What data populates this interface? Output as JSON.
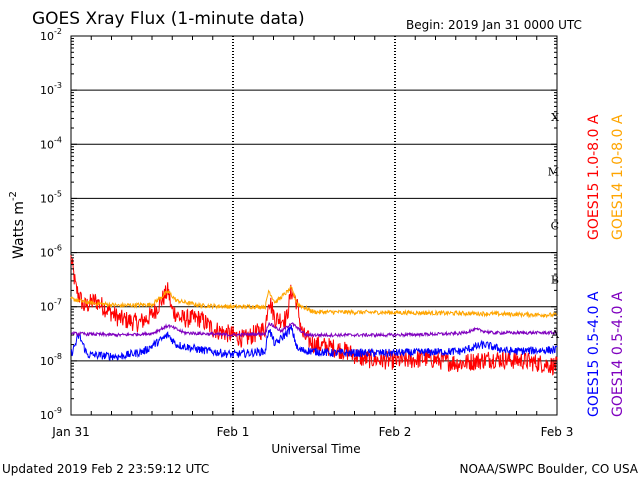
{
  "title": "GOES Xray Flux (1-minute data)",
  "begin": "Begin:  2019 Jan 31 0000 UTC",
  "updated": "Updated 2019 Feb  2 23:59:12 UTC",
  "credit": "NOAA/SWPC Boulder, CO USA",
  "chart_data": {
    "type": "line",
    "yscale": "log",
    "ylabel": "Watts m",
    "ylabel_exponent": "-2",
    "xlabel": "Universal Time",
    "xlim_days": [
      0,
      3
    ],
    "ylim": [
      1e-09,
      0.01
    ],
    "x_tick_labels": [
      "Jan 31",
      "Feb 1",
      "Feb 2",
      "Feb 3"
    ],
    "y_ticks": [
      {
        "base": "10",
        "exp": "-2"
      },
      {
        "base": "10",
        "exp": "-3"
      },
      {
        "base": "10",
        "exp": "-4"
      },
      {
        "base": "10",
        "exp": "-5"
      },
      {
        "base": "10",
        "exp": "-6"
      },
      {
        "base": "10",
        "exp": "-7"
      },
      {
        "base": "10",
        "exp": "-8"
      },
      {
        "base": "10",
        "exp": "-9"
      }
    ],
    "flare_classes": [
      {
        "label": "X",
        "value": 0.0001
      },
      {
        "label": "M",
        "value": 1e-05
      },
      {
        "label": "C",
        "value": 1e-06
      },
      {
        "label": "B",
        "value": 1e-07
      },
      {
        "label": "A",
        "value": 1e-08
      }
    ],
    "series": [
      {
        "name": "GOES15 1.0-8.0 A",
        "color": "#ff0000",
        "noise": 0.35,
        "points": [
          [
            0,
            8e-07
          ],
          [
            0.03,
            2.2e-07
          ],
          [
            0.08,
            1e-07
          ],
          [
            0.15,
            1.3e-07
          ],
          [
            0.22,
            9e-08
          ],
          [
            0.3,
            6e-08
          ],
          [
            0.42,
            5e-08
          ],
          [
            0.5,
            7e-08
          ],
          [
            0.6,
            2e-07
          ],
          [
            0.62,
            9e-08
          ],
          [
            0.68,
            6e-08
          ],
          [
            0.8,
            6e-08
          ],
          [
            0.87,
            4e-08
          ],
          [
            0.92,
            3.5e-08
          ],
          [
            1.0,
            3e-08
          ],
          [
            1.07,
            2.5e-08
          ],
          [
            1.12,
            3e-08
          ],
          [
            1.2,
            4e-08
          ],
          [
            1.22,
            1.5e-07
          ],
          [
            1.26,
            6e-08
          ],
          [
            1.33,
            6e-08
          ],
          [
            1.36,
            2e-07
          ],
          [
            1.39,
            1.3e-07
          ],
          [
            1.43,
            3e-08
          ],
          [
            1.5,
            2e-08
          ],
          [
            1.6,
            1.8e-08
          ],
          [
            1.7,
            1.5e-08
          ],
          [
            1.8,
            1.1e-08
          ],
          [
            2.0,
            1e-08
          ],
          [
            2.2,
            1.1e-08
          ],
          [
            2.4,
            9e-09
          ],
          [
            2.6,
            1.1e-08
          ],
          [
            2.8,
            1e-08
          ],
          [
            3.0,
            8e-09
          ]
        ]
      },
      {
        "name": "GOES14 1.0-8.0 A",
        "color": "#ffa500",
        "noise": 0.08,
        "points": [
          [
            0,
            1.4e-07
          ],
          [
            0.1,
            1.2e-07
          ],
          [
            0.3,
            1.05e-07
          ],
          [
            0.5,
            1.1e-07
          ],
          [
            0.6,
            1.9e-07
          ],
          [
            0.65,
            1.3e-07
          ],
          [
            0.8,
            1.05e-07
          ],
          [
            1.0,
            1e-07
          ],
          [
            1.2,
            1e-07
          ],
          [
            1.22,
            2e-07
          ],
          [
            1.26,
            1.2e-07
          ],
          [
            1.36,
            2.2e-07
          ],
          [
            1.4,
            1.1e-07
          ],
          [
            1.5,
            8e-08
          ],
          [
            2.0,
            7.8e-08
          ],
          [
            2.5,
            7.5e-08
          ],
          [
            3.0,
            7e-08
          ]
        ]
      },
      {
        "name": "GOES15 0.5-4.0 A",
        "color": "#0000ff",
        "noise": 0.15,
        "points": [
          [
            0,
            1.3e-08
          ],
          [
            0.05,
            3e-08
          ],
          [
            0.1,
            1.3e-08
          ],
          [
            0.3,
            1.2e-08
          ],
          [
            0.45,
            1.5e-08
          ],
          [
            0.6,
            3e-08
          ],
          [
            0.65,
            2e-08
          ],
          [
            0.8,
            1.6e-08
          ],
          [
            1.0,
            1.3e-08
          ],
          [
            1.2,
            1.5e-08
          ],
          [
            1.22,
            4e-08
          ],
          [
            1.26,
            2e-08
          ],
          [
            1.36,
            4e-08
          ],
          [
            1.4,
            1.6e-08
          ],
          [
            1.6,
            1.4e-08
          ],
          [
            2.0,
            1.4e-08
          ],
          [
            2.4,
            1.5e-08
          ],
          [
            2.55,
            2e-08
          ],
          [
            2.7,
            1.5e-08
          ],
          [
            3.0,
            1.6e-08
          ]
        ]
      },
      {
        "name": "GOES14 0.5-4.0 A",
        "color": "#7f00bf",
        "noise": 0.06,
        "points": [
          [
            0,
            3.2e-08
          ],
          [
            0.3,
            3e-08
          ],
          [
            0.5,
            3.2e-08
          ],
          [
            0.6,
            4.5e-08
          ],
          [
            0.7,
            3.3e-08
          ],
          [
            1.0,
            3e-08
          ],
          [
            1.2,
            3.2e-08
          ],
          [
            1.22,
            5e-08
          ],
          [
            1.3,
            3.5e-08
          ],
          [
            1.36,
            5e-08
          ],
          [
            1.45,
            3e-08
          ],
          [
            2.0,
            3e-08
          ],
          [
            2.4,
            3.2e-08
          ],
          [
            2.5,
            3.8e-08
          ],
          [
            2.6,
            3.3e-08
          ],
          [
            3.0,
            3.3e-08
          ]
        ]
      }
    ]
  }
}
